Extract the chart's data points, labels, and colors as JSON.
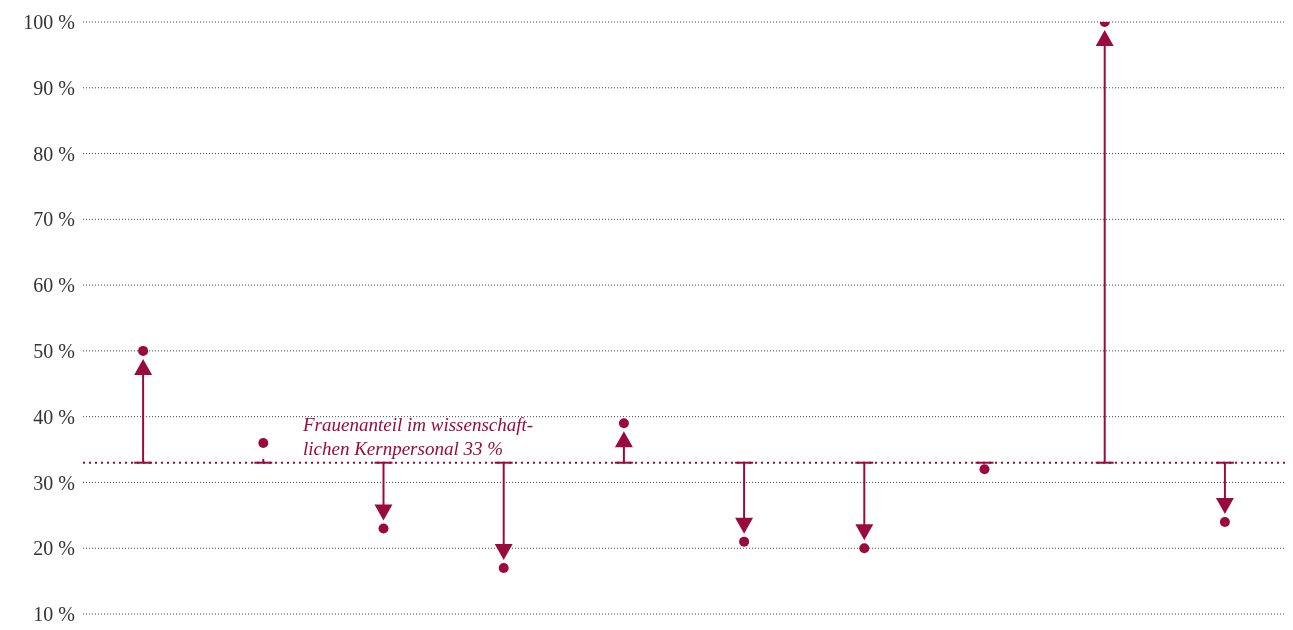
{
  "chart_data": {
    "type": "scatter",
    "categories": [
      null,
      null,
      null,
      null,
      null,
      null,
      null,
      null,
      null,
      null
    ],
    "series": [
      {
        "color": "#9b0a3f",
        "values": [
          50,
          36,
          23,
          17,
          39,
          21,
          20,
          32,
          100,
          24
        ]
      }
    ],
    "ylim": [
      10,
      100
    ],
    "yticks": [
      {
        "value": 10,
        "label": "10 %"
      },
      {
        "value": 20,
        "label": "20 %"
      },
      {
        "value": 30,
        "label": "30 %"
      },
      {
        "value": 40,
        "label": "40 %"
      },
      {
        "value": 50,
        "label": "50 %"
      },
      {
        "value": 60,
        "label": "60 %"
      },
      {
        "value": 70,
        "label": "70 %"
      },
      {
        "value": 80,
        "label": "80 %"
      },
      {
        "value": 90,
        "label": "90 %"
      },
      {
        "value": 100,
        "label": "100 %"
      }
    ],
    "grid": "y",
    "tick_labels": "y",
    "marker": "circle",
    "ref_lines": [
      {
        "axis": "y",
        "value": 33,
        "label": "Frauenanteil im wissenschaft-\nlichen Kernpersonal 33 %",
        "color": "#9b0a3f",
        "line_style": "dotted"
      }
    ]
  }
}
